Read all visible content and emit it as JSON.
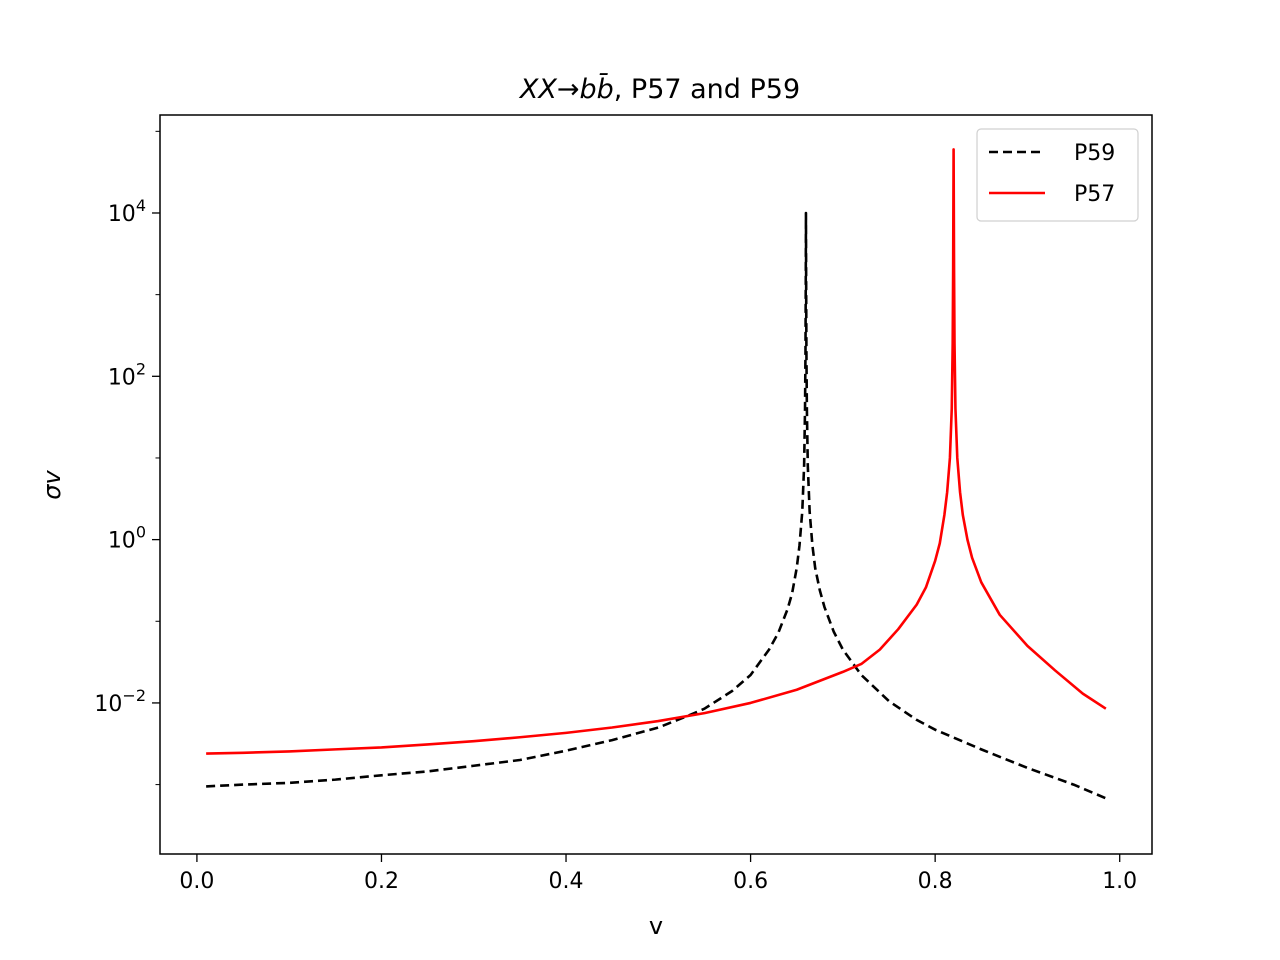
{
  "chart_data": {
    "type": "line",
    "title_main": "XX→bb̄",
    "title_rest": ", P57 and P59",
    "xlabel": "v",
    "ylabel": "σv",
    "xlim": [
      -0.04,
      1.035
    ],
    "ylim_log10": [
      -3.85,
      5.2
    ],
    "yscale": "log",
    "grid": false,
    "legend_position": "top-right",
    "xticks": [
      {
        "value": 0.0,
        "label": "0.0"
      },
      {
        "value": 0.2,
        "label": "0.2"
      },
      {
        "value": 0.4,
        "label": "0.4"
      },
      {
        "value": 0.6,
        "label": "0.6"
      },
      {
        "value": 0.8,
        "label": "0.8"
      },
      {
        "value": 1.0,
        "label": "1.0"
      }
    ],
    "yticks": [
      {
        "value": -2,
        "base": "10",
        "exp": "−2"
      },
      {
        "value": 0,
        "base": "10",
        "exp": "0"
      },
      {
        "value": 2,
        "base": "10",
        "exp": "2"
      },
      {
        "value": 4,
        "base": "10",
        "exp": "4"
      }
    ],
    "series": [
      {
        "name": "P59",
        "color": "#000000",
        "dash": "dashed",
        "peak_v": 0.66,
        "points": [
          [
            0.01,
            0.00095
          ],
          [
            0.05,
            0.001
          ],
          [
            0.1,
            0.00105
          ],
          [
            0.15,
            0.00115
          ],
          [
            0.2,
            0.0013
          ],
          [
            0.25,
            0.00145
          ],
          [
            0.3,
            0.0017
          ],
          [
            0.35,
            0.002
          ],
          [
            0.4,
            0.0026
          ],
          [
            0.45,
            0.0035
          ],
          [
            0.5,
            0.005
          ],
          [
            0.53,
            0.0068
          ],
          [
            0.55,
            0.0085
          ],
          [
            0.58,
            0.014
          ],
          [
            0.6,
            0.022
          ],
          [
            0.62,
            0.045
          ],
          [
            0.63,
            0.072
          ],
          [
            0.64,
            0.14
          ],
          [
            0.645,
            0.22
          ],
          [
            0.65,
            0.45
          ],
          [
            0.653,
            0.85
          ],
          [
            0.656,
            2.2
          ],
          [
            0.658,
            8
          ],
          [
            0.659,
            40
          ],
          [
            0.6595,
            200
          ],
          [
            0.6598,
            1500
          ],
          [
            0.66,
            10000
          ],
          [
            0.6602,
            1500
          ],
          [
            0.6605,
            200
          ],
          [
            0.661,
            40
          ],
          [
            0.662,
            8
          ],
          [
            0.664,
            2.2
          ],
          [
            0.667,
            0.85
          ],
          [
            0.67,
            0.45
          ],
          [
            0.675,
            0.24
          ],
          [
            0.68,
            0.15
          ],
          [
            0.69,
            0.075
          ],
          [
            0.7,
            0.045
          ],
          [
            0.72,
            0.022
          ],
          [
            0.75,
            0.0105
          ],
          [
            0.78,
            0.0062
          ],
          [
            0.8,
            0.0047
          ],
          [
            0.85,
            0.0027
          ],
          [
            0.9,
            0.0016
          ],
          [
            0.95,
            0.001
          ],
          [
            0.985,
            0.00068
          ]
        ]
      },
      {
        "name": "P57",
        "color": "#ff0000",
        "dash": "solid",
        "peak_v": 0.82,
        "points": [
          [
            0.01,
            0.0024
          ],
          [
            0.05,
            0.00245
          ],
          [
            0.1,
            0.00255
          ],
          [
            0.15,
            0.0027
          ],
          [
            0.2,
            0.00285
          ],
          [
            0.25,
            0.0031
          ],
          [
            0.3,
            0.0034
          ],
          [
            0.35,
            0.0038
          ],
          [
            0.4,
            0.0043
          ],
          [
            0.45,
            0.005
          ],
          [
            0.5,
            0.006
          ],
          [
            0.55,
            0.0075
          ],
          [
            0.6,
            0.01
          ],
          [
            0.65,
            0.0145
          ],
          [
            0.7,
            0.024
          ],
          [
            0.72,
            0.03
          ],
          [
            0.74,
            0.045
          ],
          [
            0.76,
            0.08
          ],
          [
            0.78,
            0.16
          ],
          [
            0.79,
            0.26
          ],
          [
            0.8,
            0.55
          ],
          [
            0.805,
            0.9
          ],
          [
            0.81,
            2.0
          ],
          [
            0.813,
            3.8
          ],
          [
            0.816,
            10
          ],
          [
            0.818,
            40
          ],
          [
            0.819,
            250
          ],
          [
            0.8195,
            2000
          ],
          [
            0.82,
            60000
          ],
          [
            0.8205,
            2000
          ],
          [
            0.821,
            250
          ],
          [
            0.822,
            40
          ],
          [
            0.824,
            10
          ],
          [
            0.827,
            3.8
          ],
          [
            0.83,
            2.0
          ],
          [
            0.835,
            1.0
          ],
          [
            0.84,
            0.6
          ],
          [
            0.85,
            0.3
          ],
          [
            0.87,
            0.12
          ],
          [
            0.9,
            0.05
          ],
          [
            0.93,
            0.025
          ],
          [
            0.96,
            0.013
          ],
          [
            0.985,
            0.0085
          ]
        ]
      }
    ]
  }
}
